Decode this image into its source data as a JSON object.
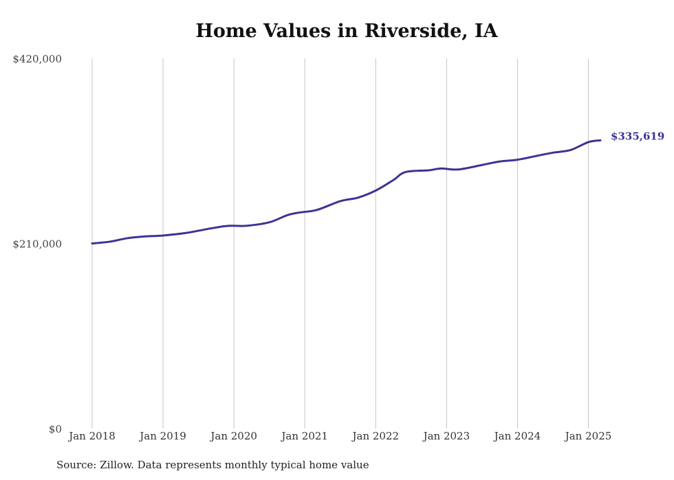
{
  "chart_data": {
    "type": "line",
    "title": "Home Values in Riverside, IA",
    "source": "Source: Zillow. Data represents monthly typical home value",
    "xlabel": "",
    "ylabel": "",
    "ylim": [
      0,
      420000
    ],
    "yticks": [
      0,
      210000,
      420000
    ],
    "ytick_labels": [
      "$0",
      "$210,000",
      "$420,000"
    ],
    "xticks": [
      2018,
      2019,
      2020,
      2021,
      2022,
      2023,
      2024,
      2025
    ],
    "xtick_labels": [
      "Jan 2018",
      "Jan 2019",
      "Jan 2020",
      "Jan 2021",
      "Jan 2022",
      "Jan 2023",
      "Jan 2024",
      "Jan 2025"
    ],
    "grid": "vertical",
    "line_color": "#3b3494",
    "end_label": "$335,619",
    "series": [
      {
        "x": [
          2018.0,
          2018.25,
          2018.5,
          2018.75,
          2019.0,
          2019.33,
          2019.67,
          2019.92,
          2020.17,
          2020.5,
          2020.75,
          2020.92,
          2021.17,
          2021.5,
          2021.75,
          2022.0,
          2022.25,
          2022.42,
          2022.75,
          2022.92,
          2023.17,
          2023.5,
          2023.75,
          2024.0,
          2024.25,
          2024.5,
          2024.75,
          2025.0,
          2025.17
        ],
        "y": [
          210000,
          212000,
          216000,
          218000,
          219000,
          222000,
          227000,
          230000,
          230000,
          234000,
          242000,
          245000,
          248000,
          258000,
          262000,
          270000,
          282000,
          291000,
          293000,
          295000,
          294000,
          299000,
          303000,
          305000,
          309000,
          313000,
          316000,
          325000,
          327000
        ]
      }
    ]
  }
}
